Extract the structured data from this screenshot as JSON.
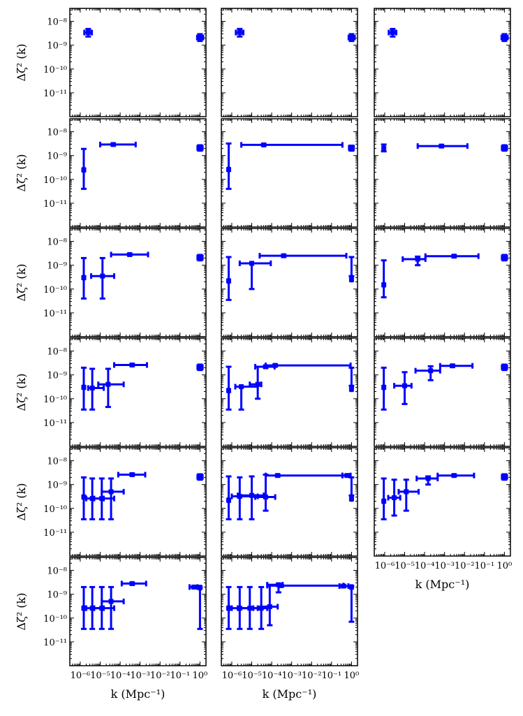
{
  "figure": {
    "ylabel": "Δζ² (k)",
    "xlabel": "k (Mpc⁻¹)",
    "yticks": [
      {
        "v": -8,
        "label": "10⁻⁸"
      },
      {
        "v": -9,
        "label": "10⁻⁹"
      },
      {
        "v": -10,
        "label": "10⁻¹⁰"
      },
      {
        "v": -11,
        "label": "10⁻¹¹"
      }
    ],
    "xticks": [
      {
        "v": -6,
        "label": "10⁻⁶"
      },
      {
        "v": -5,
        "label": "10⁻⁵"
      },
      {
        "v": -4,
        "label": "10⁻⁴"
      },
      {
        "v": -3,
        "label": "10⁻³"
      },
      {
        "v": -2,
        "label": "10⁻²"
      },
      {
        "v": -1,
        "label": "10⁻¹"
      },
      {
        "v": 0,
        "label": "10⁰"
      }
    ],
    "series_color": "#0000ff"
  },
  "chart_data": {
    "type": "scatter",
    "x_scale": "log",
    "y_scale": "log",
    "xlim": [
      3e-07,
      2.0
    ],
    "ylim": [
      1e-12,
      3.5e-08
    ],
    "error_bar_convention": "each point: [k, k_low, k_high, Δ², Δ²_low, Δ²_high]",
    "panels": [
      {
        "row": 1,
        "col": 1,
        "points": [
          [
            2.5e-06,
            1.6e-06,
            3.8e-06,
            3.4e-09,
            2.3e-09,
            4.8e-09
          ],
          [
            1.0,
            0.72,
            1.45,
            2.1e-09,
            1.5e-09,
            2.9e-09
          ]
        ]
      },
      {
        "row": 1,
        "col": 2,
        "points": [
          [
            2.5e-06,
            1.6e-06,
            3.8e-06,
            3.4e-09,
            2.3e-09,
            4.8e-09
          ],
          [
            1.0,
            0.72,
            1.45,
            2.1e-09,
            1.5e-09,
            2.9e-09
          ]
        ]
      },
      {
        "row": 1,
        "col": 3,
        "points": [
          [
            2.5e-06,
            1.6e-06,
            3.8e-06,
            3.4e-09,
            2.3e-09,
            4.8e-09
          ],
          [
            1.0,
            0.72,
            1.45,
            2.1e-09,
            1.5e-09,
            2.9e-09
          ]
        ]
      },
      {
        "row": 2,
        "col": 1,
        "points": [
          [
            1.5e-06,
            1.4e-06,
            1.6e-06,
            2.5e-10,
            4e-11,
            1.9e-09
          ],
          [
            4.5e-05,
            1e-05,
            0.0006,
            2.9e-09,
            2.7e-09,
            3.1e-09
          ],
          [
            1.0,
            0.75,
            1.35,
            2.1e-09,
            1.6e-09,
            2.7e-09
          ]
        ]
      },
      {
        "row": 2,
        "col": 2,
        "points": [
          [
            7e-07,
            6.5e-07,
            7.5e-07,
            2.6e-10,
            4e-11,
            3.2e-09
          ],
          [
            4e-05,
            3e-06,
            0.35,
            2.8e-09,
            2.6e-09,
            3e-09
          ],
          [
            1.0,
            0.75,
            1.3,
            2.1e-09,
            1.6e-09,
            2.6e-09
          ]
        ]
      },
      {
        "row": 2,
        "col": 3,
        "points": [
          [
            9e-07,
            8.5e-07,
            9.5e-07,
            2e-09,
            1.5e-09,
            2.9e-09
          ],
          [
            0.0007,
            4.5e-05,
            0.014,
            2.5e-09,
            2.3e-09,
            2.7e-09
          ],
          [
            1.0,
            0.75,
            1.35,
            2.1e-09,
            1.6e-09,
            2.7e-09
          ]
        ]
      },
      {
        "row": 3,
        "col": 1,
        "points": [
          [
            1.5e-06,
            1.4e-06,
            1.6e-06,
            3e-10,
            4e-11,
            2e-09
          ],
          [
            1.3e-05,
            3.5e-06,
            5e-05,
            3.5e-10,
            4e-11,
            2e-09
          ],
          [
            0.0003,
            3.5e-05,
            0.0025,
            2.8e-09,
            2.6e-09,
            3e-09
          ],
          [
            1.0,
            0.75,
            1.35,
            2.1e-09,
            1.6e-09,
            2.7e-09
          ]
        ]
      },
      {
        "row": 3,
        "col": 2,
        "points": [
          [
            7e-07,
            6.5e-07,
            7.5e-07,
            2.2e-10,
            3.5e-11,
            2.2e-09
          ],
          [
            1e-05,
            2.5e-06,
            9e-05,
            1.2e-09,
            1e-10,
            1.2e-09
          ],
          [
            0.0004,
            2.5e-05,
            0.55,
            2.5e-09,
            2.3e-09,
            2.7e-09
          ],
          [
            1.0,
            0.92,
            1.08,
            2.5e-10,
            3.5e-10,
            2.2e-09
          ]
        ]
      },
      {
        "row": 3,
        "col": 3,
        "points": [
          [
            9e-07,
            8.5e-07,
            9.5e-07,
            1.5e-10,
            4.5e-11,
            1.6e-09
          ],
          [
            4.5e-05,
            8e-06,
            0.00011,
            1.8e-09,
            1e-09,
            2.3e-09
          ],
          [
            0.003,
            0.00011,
            0.05,
            2.4e-09,
            2.2e-09,
            2.6e-09
          ],
          [
            1.0,
            0.75,
            1.35,
            2.1e-09,
            1.6e-09,
            2.7e-09
          ]
        ]
      },
      {
        "row": 4,
        "col": 1,
        "points": [
          [
            1.5e-06,
            1.4e-06,
            1.6e-06,
            3e-10,
            3.5e-11,
            2e-09
          ],
          [
            4e-06,
            2.5e-06,
            1.5e-05,
            2.8e-10,
            3.5e-11,
            1.8e-09
          ],
          [
            2.5e-05,
            8e-06,
            0.00015,
            4e-10,
            4.5e-11,
            1.8e-09
          ],
          [
            0.0004,
            5e-05,
            0.0022,
            2.6e-09,
            2.4e-09,
            2.9e-09
          ],
          [
            1.0,
            0.75,
            1.35,
            2.1e-09,
            1.6e-09,
            2.7e-09
          ]
        ]
      },
      {
        "row": 4,
        "col": 2,
        "points": [
          [
            7e-07,
            6.5e-07,
            7.5e-07,
            2.2e-10,
            3.5e-11,
            2.2e-09
          ],
          [
            3e-06,
            1.5e-06,
            2e-05,
            3.2e-10,
            3.5e-11,
            3.2e-10
          ],
          [
            2e-05,
            8e-06,
            3e-05,
            4e-10,
            1e-10,
            2.2e-09
          ],
          [
            5e-05,
            1.5e-05,
            0.00014,
            2.2e-09,
            2e-09,
            2.4e-09
          ],
          [
            0.00015,
            5e-05,
            0.9,
            2.5e-09,
            2.3e-09,
            2.7e-09
          ],
          [
            1.0,
            0.92,
            1.08,
            2.5e-10,
            3.5e-10,
            2e-09
          ]
        ]
      },
      {
        "row": 4,
        "col": 3,
        "points": [
          [
            9e-07,
            8.5e-07,
            9.5e-07,
            3e-10,
            3.5e-11,
            2e-09
          ],
          [
            1e-05,
            3e-06,
            2.2e-05,
            3.5e-10,
            6e-11,
            1.3e-09
          ],
          [
            0.0002,
            3.5e-05,
            0.0006,
            1.5e-09,
            6e-10,
            2.3e-09
          ],
          [
            0.0025,
            0.0006,
            0.025,
            2.4e-09,
            2.2e-09,
            2.6e-09
          ],
          [
            1.0,
            0.75,
            1.35,
            2.1e-09,
            1.6e-09,
            2.7e-09
          ]
        ]
      },
      {
        "row": 5,
        "col": 1,
        "points": [
          [
            1.5e-06,
            1.4e-06,
            1.6e-06,
            3e-10,
            3.5e-11,
            2e-09
          ],
          [
            4e-06,
            2e-06,
            1.5e-05,
            2.6e-10,
            3.5e-11,
            1.8e-09
          ],
          [
            1.2e-05,
            5e-06,
            5e-05,
            2.6e-10,
            3.5e-11,
            1.8e-09
          ],
          [
            3.5e-05,
            1.2e-05,
            0.00015,
            5e-10,
            3.5e-11,
            1.8e-09
          ],
          [
            0.0004,
            8e-05,
            0.0018,
            2.6e-09,
            2.4e-09,
            2.9e-09
          ],
          [
            1.0,
            0.75,
            1.35,
            2.1e-09,
            1.6e-09,
            2.7e-09
          ]
        ]
      },
      {
        "row": 5,
        "col": 2,
        "points": [
          [
            7e-07,
            6.5e-07,
            7.5e-07,
            2.2e-10,
            3.5e-11,
            2.2e-09
          ],
          [
            2.5e-06,
            1e-06,
            2e-05,
            3.2e-10,
            3.5e-11,
            2e-09
          ],
          [
            1e-05,
            2e-06,
            4e-05,
            3.5e-10,
            3.5e-11,
            2.2e-09
          ],
          [
            5e-05,
            1.5e-05,
            0.00015,
            3e-10,
            8e-11,
            2.6e-09
          ],
          [
            0.0002,
            5e-05,
            0.35,
            2.4e-09,
            2.2e-09,
            2.6e-09
          ],
          [
            0.6,
            0.35,
            0.9,
            2.4e-09,
            2.2e-09,
            2.6e-09
          ],
          [
            1.0,
            0.92,
            1.08,
            2.5e-10,
            3.5e-10,
            2e-09
          ]
        ]
      },
      {
        "row": 5,
        "col": 3,
        "points": [
          [
            9e-07,
            8.5e-07,
            9.5e-07,
            2e-10,
            3.5e-11,
            1.8e-09
          ],
          [
            3e-06,
            1.5e-06,
            6e-06,
            2.8e-10,
            5e-11,
            1.6e-09
          ],
          [
            1.2e-05,
            5e-06,
            5e-05,
            5e-10,
            8e-11,
            1.6e-09
          ],
          [
            0.00015,
            4e-05,
            0.00045,
            1.8e-09,
            1e-09,
            2.2e-09
          ],
          [
            0.003,
            0.00045,
            0.03,
            2.4e-09,
            2.2e-09,
            2.6e-09
          ],
          [
            1.0,
            0.75,
            1.35,
            2.1e-09,
            1.6e-09,
            2.7e-09
          ]
        ]
      },
      {
        "row": 6,
        "col": 1,
        "points": [
          [
            1.5e-06,
            1.4e-06,
            1.6e-06,
            2.6e-10,
            3.5e-11,
            2e-09
          ],
          [
            4e-06,
            2e-06,
            1.5e-05,
            2.6e-10,
            3.5e-11,
            2e-09
          ],
          [
            1.2e-05,
            5e-06,
            5e-05,
            2.6e-10,
            3.5e-11,
            2e-09
          ],
          [
            3.5e-05,
            1.2e-05,
            0.00015,
            5e-10,
            3.5e-11,
            2e-09
          ],
          [
            0.0004,
            0.00012,
            0.002,
            2.8e-09,
            2.5e-09,
            3e-09
          ],
          [
            0.5,
            0.3,
            0.75,
            2e-09,
            1.8e-09,
            2.2e-09
          ],
          [
            1.0,
            0.92,
            1.08,
            1.9e-09,
            3.5e-11,
            1.9e-09
          ]
        ]
      },
      {
        "row": 6,
        "col": 2,
        "points": [
          [
            7e-07,
            6.5e-07,
            7.5e-07,
            2.6e-10,
            3.5e-11,
            2e-09
          ],
          [
            2.5e-06,
            1e-06,
            2e-05,
            2.6e-10,
            3.5e-11,
            2e-09
          ],
          [
            8e-06,
            2e-06,
            3e-05,
            2.6e-10,
            3.5e-11,
            2e-09
          ],
          [
            3e-05,
            1.2e-05,
            6e-05,
            2.6e-10,
            3.5e-11,
            2e-09
          ],
          [
            8e-05,
            3e-05,
            0.0002,
            3e-10,
            5e-11,
            2.4e-09
          ],
          [
            0.00022,
            6e-05,
            0.00035,
            2.5e-09,
            1.2e-09,
            2.7e-09
          ],
          [
            0.0003,
            6e-05,
            0.4,
            2.3e-09,
            2.1e-09,
            2.5e-09
          ],
          [
            0.4,
            0.25,
            0.7,
            2.2e-09,
            2e-09,
            2.4e-09
          ],
          [
            1.0,
            0.92,
            1.08,
            2e-09,
            7e-11,
            2.2e-09
          ]
        ]
      }
    ]
  }
}
